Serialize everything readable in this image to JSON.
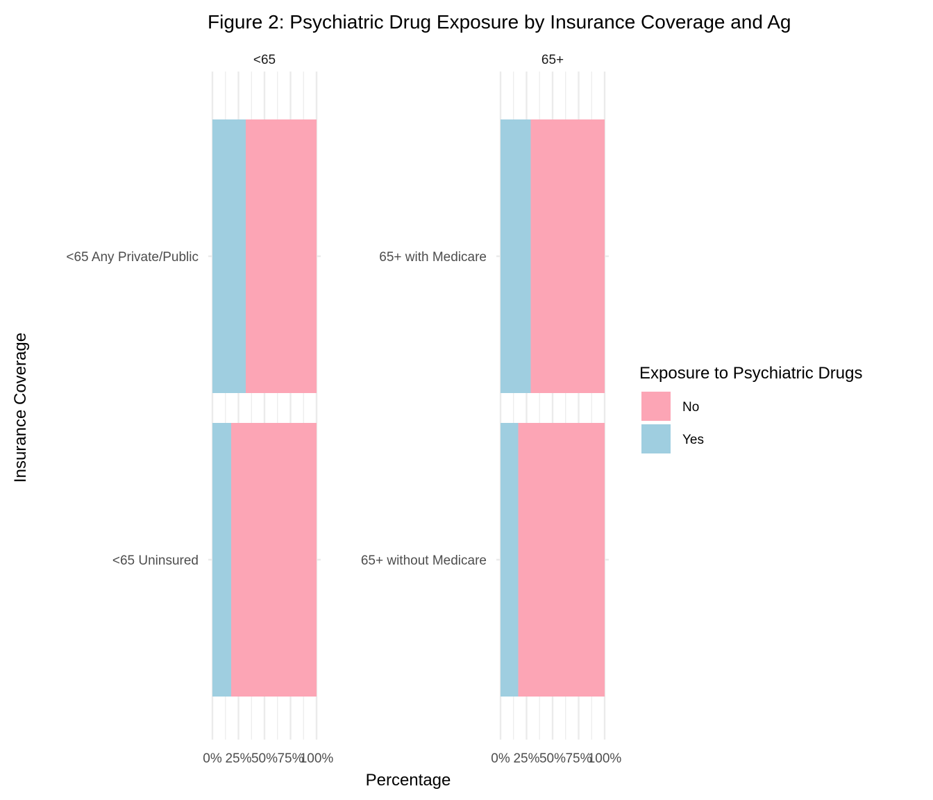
{
  "chart_data": {
    "type": "bar",
    "orientation": "horizontal",
    "stacked": "percent",
    "title": "Figure 2: Psychiatric Drug Exposure by Insurance Coverage and Ag",
    "xlabel": "Percentage",
    "ylabel": "Insurance Coverage",
    "xlim": [
      0,
      1
    ],
    "x_ticks": [
      "0%",
      "25%",
      "50%",
      "75%",
      "100%"
    ],
    "grid": true,
    "legend": {
      "title": "Exposure to Psychiatric Drugs",
      "position": "right",
      "entries": [
        "No",
        "Yes"
      ]
    },
    "colors": {
      "No": "#FCA5B5",
      "Yes": "#9FCEE0",
      "grid": "#EBEBEB"
    },
    "facets": [
      {
        "label": "<65",
        "categories": [
          "<65 Any Private/Public",
          "<65 Uninsured"
        ],
        "series": [
          {
            "name": "Yes",
            "values": [
              0.32,
              0.18
            ]
          },
          {
            "name": "No",
            "values": [
              0.68,
              0.82
            ]
          }
        ]
      },
      {
        "label": "65+",
        "categories": [
          "65+ with Medicare",
          "65+ without Medicare"
        ],
        "series": [
          {
            "name": "Yes",
            "values": [
              0.29,
              0.17
            ]
          },
          {
            "name": "No",
            "values": [
              0.71,
              0.83
            ]
          }
        ]
      }
    ]
  }
}
